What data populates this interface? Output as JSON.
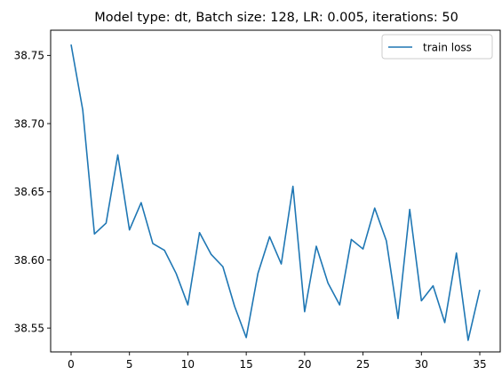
{
  "colors": {
    "line": "#1f77b4",
    "axes": "#000000",
    "background": "#ffffff",
    "legend_border": "#cccccc"
  },
  "chart_data": {
    "type": "line",
    "title": "Model type: dt, Batch size: 128, LR: 0.005, iterations: 50",
    "xlabel": "",
    "ylabel": "",
    "xlim": [
      -1.75,
      36.75
    ],
    "ylim": [
      38.5325,
      38.7685
    ],
    "xticks": [
      0,
      5,
      10,
      15,
      20,
      25,
      30,
      35
    ],
    "yticks": [
      38.55,
      38.6,
      38.65,
      38.7,
      38.75
    ],
    "xtick_labels": [
      "0",
      "5",
      "10",
      "15",
      "20",
      "25",
      "30",
      "35"
    ],
    "ytick_labels": [
      "38.55",
      "38.60",
      "38.65",
      "38.70",
      "38.75"
    ],
    "grid": false,
    "legend_position": "top-right",
    "series": [
      {
        "name": "train loss",
        "x": [
          0,
          1,
          2,
          3,
          4,
          5,
          6,
          7,
          8,
          9,
          10,
          11,
          12,
          13,
          14,
          15,
          16,
          17,
          18,
          19,
          20,
          21,
          22,
          23,
          24,
          25,
          26,
          27,
          28,
          29,
          30,
          31,
          32,
          33,
          34,
          35
        ],
        "values": [
          38.758,
          38.71,
          38.619,
          38.627,
          38.677,
          38.622,
          38.642,
          38.612,
          38.607,
          38.59,
          38.567,
          38.62,
          38.604,
          38.595,
          38.566,
          38.543,
          38.59,
          38.617,
          38.597,
          38.654,
          38.562,
          38.61,
          38.583,
          38.567,
          38.615,
          38.608,
          38.638,
          38.614,
          38.557,
          38.637,
          38.57,
          38.581,
          38.554,
          38.605,
          38.541,
          38.578
        ]
      }
    ]
  }
}
